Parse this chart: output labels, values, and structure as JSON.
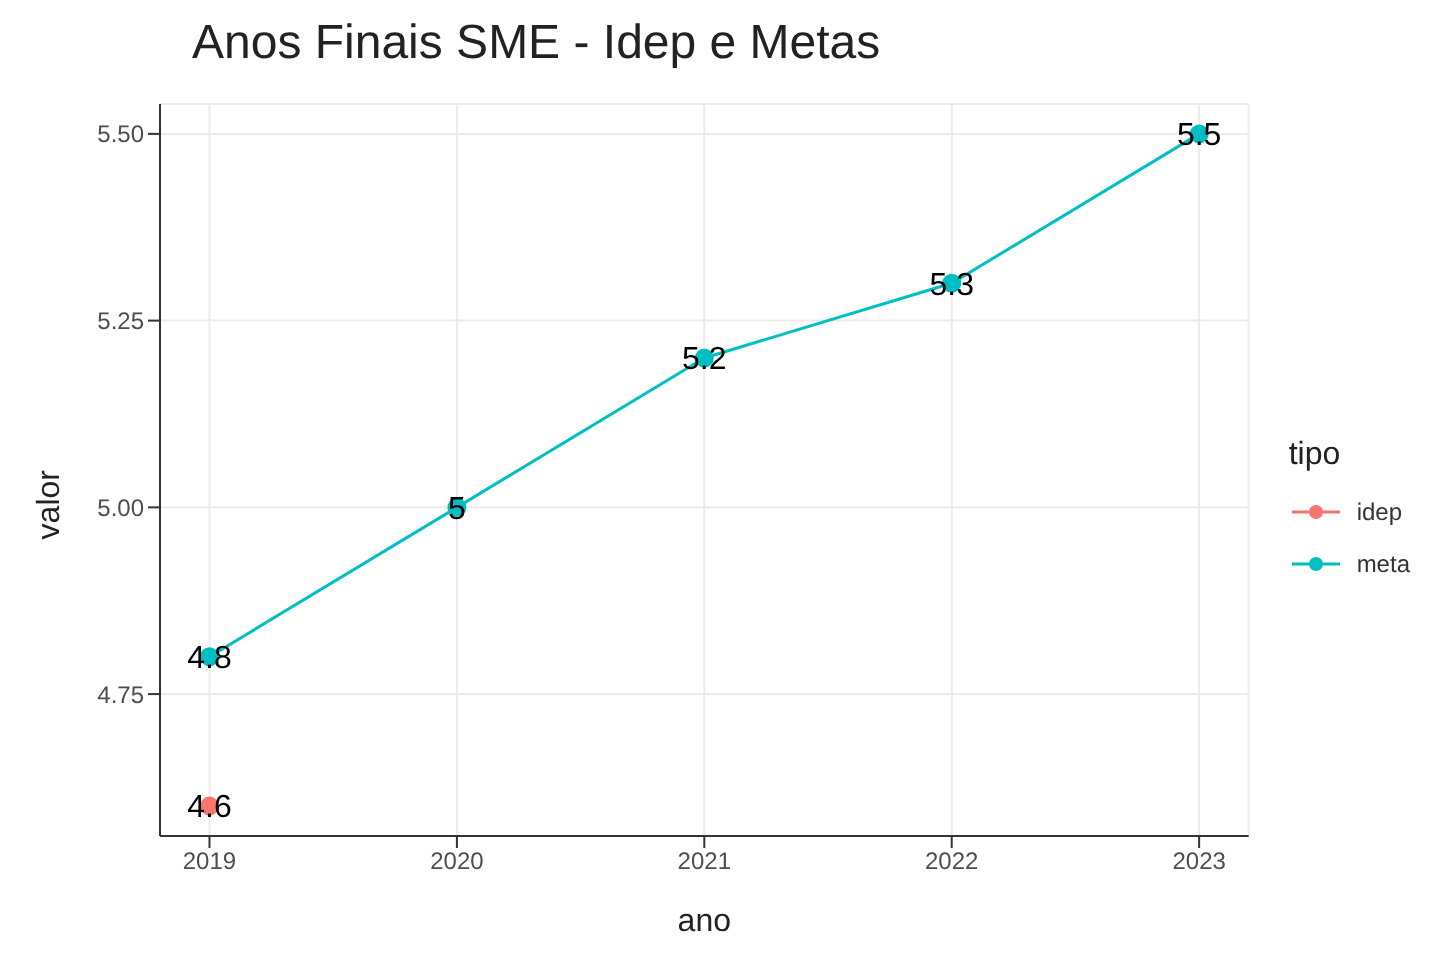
{
  "chart_data": {
    "type": "line",
    "title": "Anos Finais SME - Idep e Metas",
    "xlabel": "ano",
    "ylabel": "valor",
    "legend_title": "tipo",
    "x": [
      2019,
      2020,
      2021,
      2022,
      2023
    ],
    "series": [
      {
        "name": "idep",
        "color": "#f8766d",
        "values": [
          4.6,
          null,
          null,
          null,
          null
        ]
      },
      {
        "name": "meta",
        "color": "#00bfc4",
        "values": [
          4.8,
          5,
          5.2,
          5.3,
          5.5
        ]
      }
    ],
    "xlim": [
      2018.8,
      2023.2
    ],
    "xticks": [
      2019,
      2020,
      2021,
      2022,
      2023
    ],
    "ylim": [
      4.56,
      5.54
    ],
    "yticks": [
      {
        "value": 4.75,
        "label": "4.75"
      },
      {
        "value": 5,
        "label": "5.00"
      },
      {
        "value": 5.25,
        "label": "5.25"
      },
      {
        "value": 5.5,
        "label": "5.50"
      }
    ],
    "grid": true,
    "legend": "right",
    "marker": "circle",
    "line_style": "solid",
    "data_labels": true
  }
}
